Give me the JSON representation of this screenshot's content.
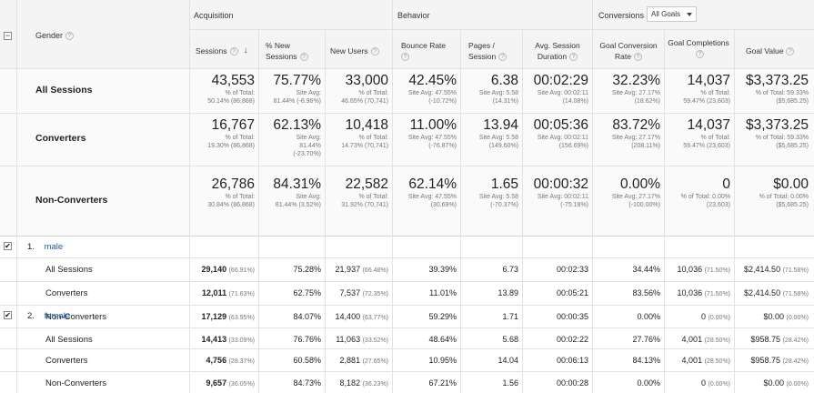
{
  "header": {
    "dimension_label": "Gender",
    "groups": {
      "acquisition": "Acquisition",
      "behavior": "Behavior",
      "conversions": "Conversions",
      "conversions_select": "All Goals"
    },
    "columns": [
      {
        "label": "Sessions"
      },
      {
        "label": "% New Sessions"
      },
      {
        "label": "New Users"
      },
      {
        "label": "Bounce Rate"
      },
      {
        "label": "Pages / Session"
      },
      {
        "label": "Avg. Session Duration"
      },
      {
        "label": "Goal Conversion Rate"
      },
      {
        "label": "Goal Completions"
      },
      {
        "label": "Goal Value"
      }
    ]
  },
  "summary": [
    {
      "label": "All Sessions",
      "cells": [
        {
          "value": "43,553",
          "s1": "% of Total:",
          "s2": "50.14% (86,868)",
          "s3": ""
        },
        {
          "value": "75.77%",
          "s1": "Site Avg:",
          "s2": "81.44% (-6.96%)",
          "s3": ""
        },
        {
          "value": "33,000",
          "s1": "% of Total:",
          "s2": "46.65% (70,741)",
          "s3": ""
        },
        {
          "value": "42.45%",
          "s1": "Site Avg: 47.55%",
          "s2": "(-10.72%)",
          "s3": ""
        },
        {
          "value": "6.38",
          "s1": "Site Avg: 5.58",
          "s2": "(14.31%)",
          "s3": ""
        },
        {
          "value": "00:02:29",
          "s1": "Site Avg: 00:02:11",
          "s2": "(14.08%)",
          "s3": ""
        },
        {
          "value": "32.23%",
          "s1": "Site Avg: 27.17%",
          "s2": "(18.62%)",
          "s3": ""
        },
        {
          "value": "14,037",
          "s1": "% of Total:",
          "s2": "59.47% (23,603)",
          "s3": ""
        },
        {
          "value": "$3,373.25",
          "s1": "% of Total: 59.33%",
          "s2": "($5,685.25)",
          "s3": ""
        }
      ]
    },
    {
      "label": "Converters",
      "cells": [
        {
          "value": "16,767",
          "s1": "% of Total:",
          "s2": "19.30% (86,868)",
          "s3": ""
        },
        {
          "value": "62.13%",
          "s1": "Site Avg:",
          "s2": "81.44%",
          "s3": "(-23.70%)"
        },
        {
          "value": "10,418",
          "s1": "% of Total:",
          "s2": "14.73% (70,741)",
          "s3": ""
        },
        {
          "value": "11.00%",
          "s1": "Site Avg: 47.55%",
          "s2": "(-76.87%)",
          "s3": ""
        },
        {
          "value": "13.94",
          "s1": "Site Avg: 5.58",
          "s2": "(149.60%)",
          "s3": ""
        },
        {
          "value": "00:05:36",
          "s1": "Site Avg: 00:02:11",
          "s2": "(156.69%)",
          "s3": ""
        },
        {
          "value": "83.72%",
          "s1": "Site Avg: 27.17%",
          "s2": "(208.11%)",
          "s3": ""
        },
        {
          "value": "14,037",
          "s1": "% of Total:",
          "s2": "59.47% (23,603)",
          "s3": ""
        },
        {
          "value": "$3,373.25",
          "s1": "% of Total: 59.33%",
          "s2": "($5,685.25)",
          "s3": ""
        }
      ]
    },
    {
      "label": "Non-Converters",
      "cells": [
        {
          "value": "26,786",
          "s1": "% of Total:",
          "s2": "30.84% (86,868)",
          "s3": ""
        },
        {
          "value": "84.31%",
          "s1": "Site Avg:",
          "s2": "81.44% (3.52%)",
          "s3": ""
        },
        {
          "value": "22,582",
          "s1": "% of Total:",
          "s2": "31.92% (70,741)",
          "s3": ""
        },
        {
          "value": "62.14%",
          "s1": "Site Avg: 47.55%",
          "s2": "(30.69%)",
          "s3": ""
        },
        {
          "value": "1.65",
          "s1": "Site Avg: 5.58",
          "s2": "(-70.37%)",
          "s3": ""
        },
        {
          "value": "00:00:32",
          "s1": "Site Avg: 00:02:11",
          "s2": "(-75.18%)",
          "s3": ""
        },
        {
          "value": "0.00%",
          "s1": "Site Avg: 27.17%",
          "s2": "(-100.00%)",
          "s3": ""
        },
        {
          "value": "0",
          "s1": "% of Total: 0.00%",
          "s2": "(23,603)",
          "s3": ""
        },
        {
          "value": "$0.00",
          "s1": "% of Total: 0.00%",
          "s2": "($5,685.25)",
          "s3": ""
        }
      ]
    }
  ],
  "groups": [
    {
      "index": "1.",
      "name": "male",
      "rows": [
        {
          "label": "All Sessions",
          "cells": [
            {
              "v": "29,140",
              "p": "(66.91%)"
            },
            {
              "v": "75.28%",
              "p": ""
            },
            {
              "v": "21,937",
              "p": "(66.48%)"
            },
            {
              "v": "39.39%",
              "p": ""
            },
            {
              "v": "6.73",
              "p": ""
            },
            {
              "v": "00:02:33",
              "p": ""
            },
            {
              "v": "34.44%",
              "p": ""
            },
            {
              "v": "10,036",
              "p": "(71.50%)"
            },
            {
              "v": "$2,414.50",
              "p": "(71.58%)"
            }
          ]
        },
        {
          "label": "Converters",
          "cells": [
            {
              "v": "12,011",
              "p": "(71.63%)"
            },
            {
              "v": "62.75%",
              "p": ""
            },
            {
              "v": "7,537",
              "p": "(72.35%)"
            },
            {
              "v": "11.01%",
              "p": ""
            },
            {
              "v": "13.89",
              "p": ""
            },
            {
              "v": "00:05:21",
              "p": ""
            },
            {
              "v": "83.56%",
              "p": ""
            },
            {
              "v": "10,036",
              "p": "(71.50%)"
            },
            {
              "v": "$2,414.50",
              "p": "(71.58%)"
            }
          ]
        },
        {
          "label": "Non-Converters",
          "cells": [
            {
              "v": "17,129",
              "p": "(63.95%)"
            },
            {
              "v": "84.07%",
              "p": ""
            },
            {
              "v": "14,400",
              "p": "(63.77%)"
            },
            {
              "v": "59.29%",
              "p": ""
            },
            {
              "v": "1.71",
              "p": ""
            },
            {
              "v": "00:00:35",
              "p": ""
            },
            {
              "v": "0.00%",
              "p": ""
            },
            {
              "v": "0",
              "p": "(0.00%)"
            },
            {
              "v": "$0.00",
              "p": "(0.00%)"
            }
          ]
        }
      ]
    },
    {
      "index": "2.",
      "name": "female",
      "rows": [
        {
          "label": "All Sessions",
          "cells": [
            {
              "v": "14,413",
              "p": "(33.09%)"
            },
            {
              "v": "76.76%",
              "p": ""
            },
            {
              "v": "11,063",
              "p": "(33.52%)"
            },
            {
              "v": "48.64%",
              "p": ""
            },
            {
              "v": "5.68",
              "p": ""
            },
            {
              "v": "00:02:22",
              "p": ""
            },
            {
              "v": "27.76%",
              "p": ""
            },
            {
              "v": "4,001",
              "p": "(28.50%)"
            },
            {
              "v": "$958.75",
              "p": "(28.42%)"
            }
          ]
        },
        {
          "label": "Converters",
          "cells": [
            {
              "v": "4,756",
              "p": "(28.37%)"
            },
            {
              "v": "60.58%",
              "p": ""
            },
            {
              "v": "2,881",
              "p": "(27.65%)"
            },
            {
              "v": "10.95%",
              "p": ""
            },
            {
              "v": "14.04",
              "p": ""
            },
            {
              "v": "00:06:13",
              "p": ""
            },
            {
              "v": "84.13%",
              "p": ""
            },
            {
              "v": "4,001",
              "p": "(28.50%)"
            },
            {
              "v": "$958.75",
              "p": "(28.42%)"
            }
          ]
        },
        {
          "label": "Non-Converters",
          "cells": [
            {
              "v": "9,657",
              "p": "(36.05%)"
            },
            {
              "v": "84.73%",
              "p": ""
            },
            {
              "v": "8,182",
              "p": "(36.23%)"
            },
            {
              "v": "67.21%",
              "p": ""
            },
            {
              "v": "1.56",
              "p": ""
            },
            {
              "v": "00:00:28",
              "p": ""
            },
            {
              "v": "0.00%",
              "p": ""
            },
            {
              "v": "0",
              "p": "(0.00%)"
            },
            {
              "v": "$0.00",
              "p": "(0.00%)"
            }
          ]
        }
      ]
    }
  ],
  "icons": {
    "help": "?",
    "sort": "↓",
    "check": "✔",
    "collapse": "−"
  }
}
